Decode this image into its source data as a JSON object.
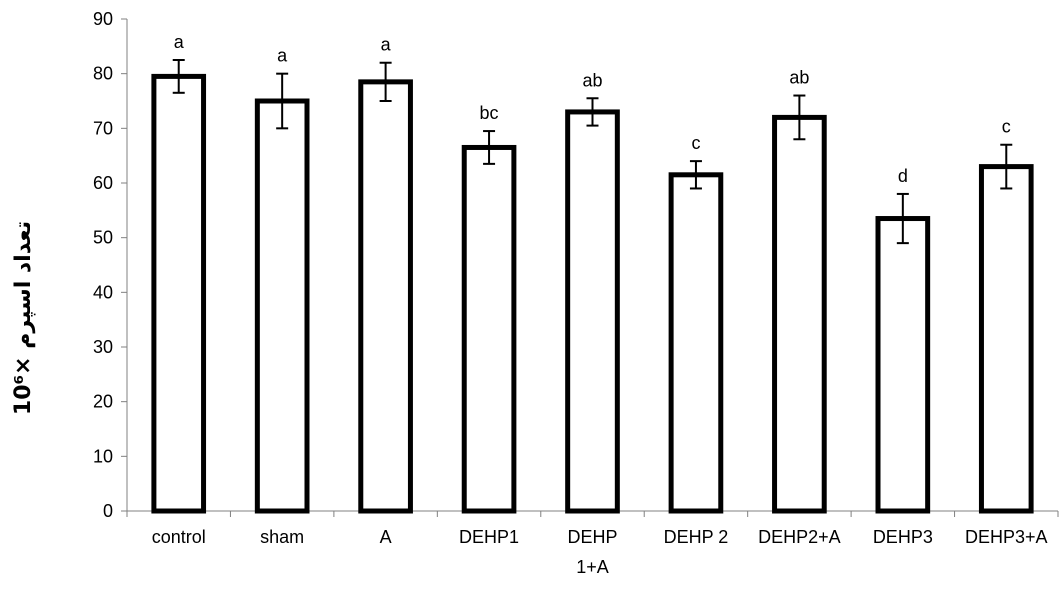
{
  "chart_data": {
    "type": "bar",
    "categories": [
      "control",
      "sham",
      "A",
      "DEHP1",
      "DEHP\n1+A",
      "DEHP 2",
      "DEHP2+A",
      "DEHP3",
      "DEHP3+A"
    ],
    "values": [
      79.5,
      75,
      78.5,
      66.5,
      73,
      61.5,
      72,
      53.5,
      63
    ],
    "errors": [
      3,
      5,
      3.5,
      3,
      2.5,
      2.5,
      4,
      4.5,
      4
    ],
    "letters": [
      "a",
      "a",
      "a",
      "bc",
      "ab",
      "c",
      "ab",
      "d",
      "c"
    ],
    "title": "",
    "xlabel": "",
    "ylabel": "تعداد اسپرم ×10⁶",
    "ylim": [
      0,
      90
    ],
    "yticks": [
      0,
      10,
      20,
      30,
      40,
      50,
      60,
      70,
      80,
      90
    ],
    "grid": false,
    "legend": "none",
    "colors": {
      "bar_fill": "#ffffff",
      "bar_stroke": "#000000",
      "axis": "#808080"
    }
  }
}
